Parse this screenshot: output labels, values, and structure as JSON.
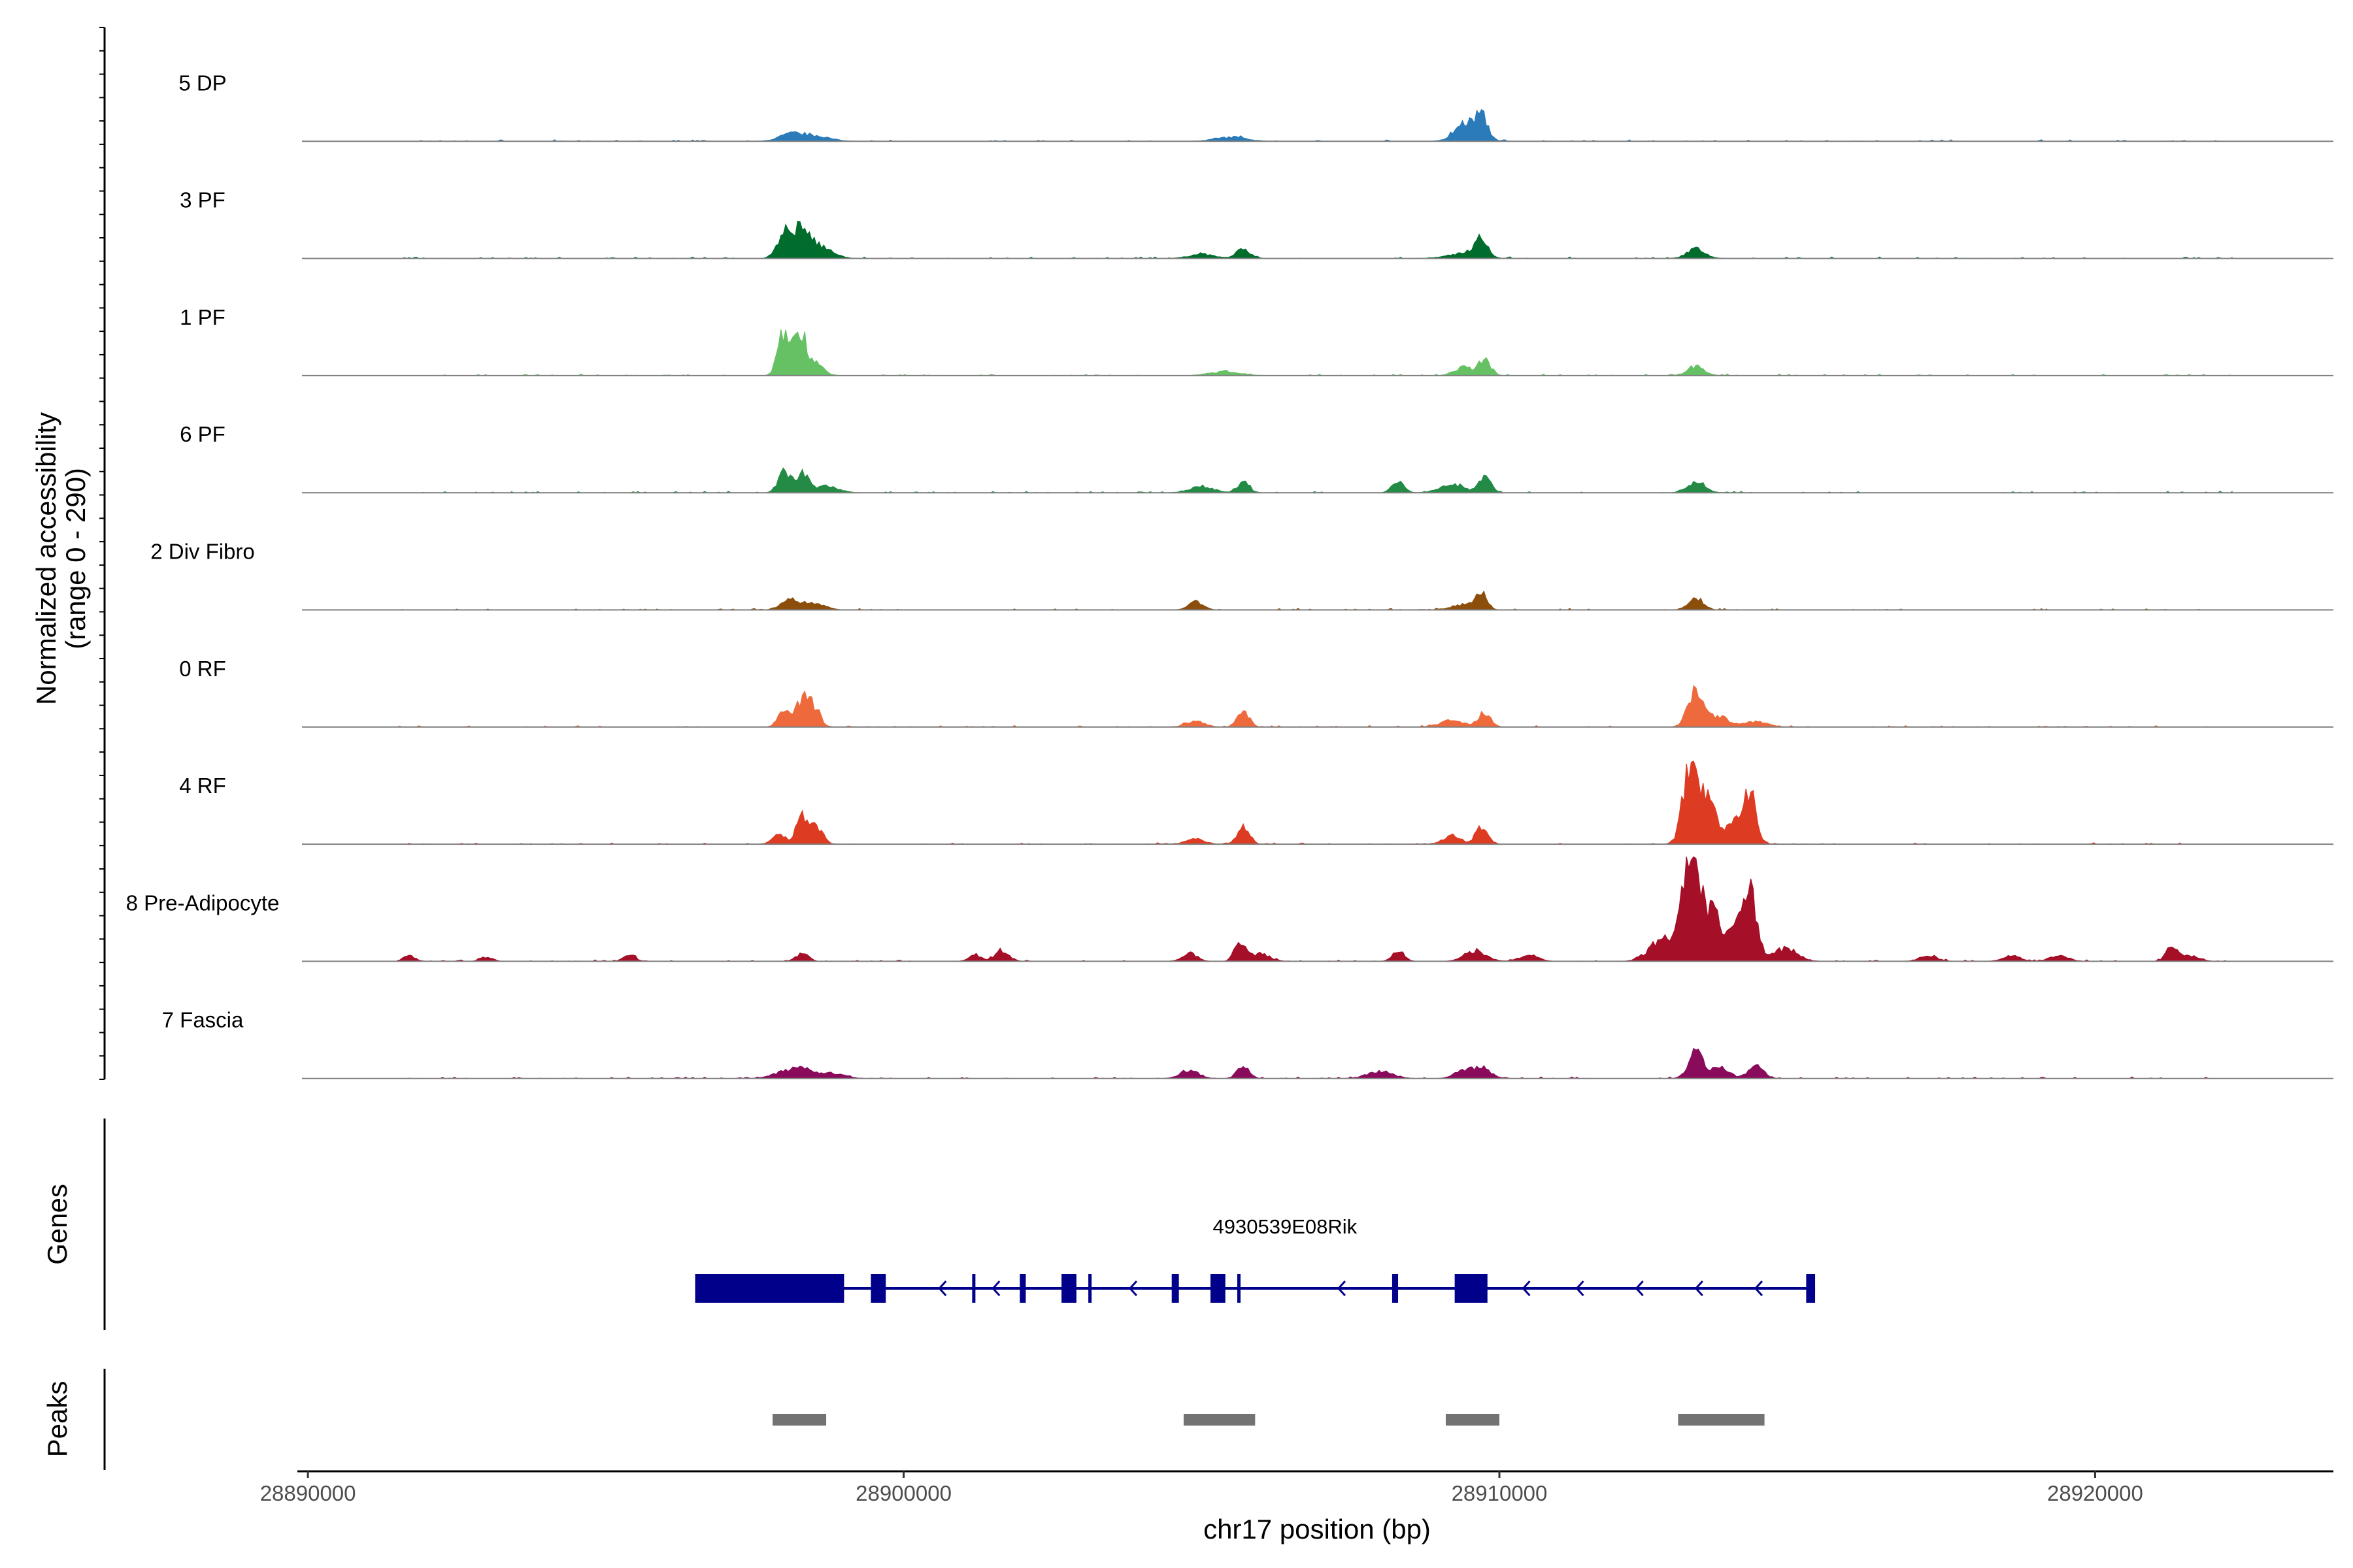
{
  "chart_data": {
    "type": "area",
    "ylabel": "Normalized accessibility",
    "ylabel_range": "(range 0 - 290)",
    "ylim": [
      0,
      290
    ],
    "xlabel": "chr17 position (bp)",
    "xlim": [
      28889900,
      28924000
    ],
    "xticks": [
      28890000,
      28900000,
      28910000,
      28920000
    ],
    "xtick_labels": [
      "28890000",
      "28900000",
      "28910000",
      "28920000"
    ],
    "track_panel_label": "Genes",
    "peak_panel_label": "Peaks",
    "baseline_color": "#7f7f7f",
    "tracks": [
      {
        "name": "5 DP",
        "color": "#2b7bba",
        "peaks": [
          [
            28898100,
            0.06,
            200
          ],
          [
            28898500,
            0.05,
            250
          ],
          [
            28905500,
            0.04,
            250
          ],
          [
            28909400,
            0.1,
            150
          ],
          [
            28909700,
            0.2,
            100
          ],
          [
            28909500,
            0.08,
            220
          ]
        ]
      },
      {
        "name": "3 PF",
        "color": "#006d2c",
        "peaks": [
          [
            28898000,
            0.25,
            120
          ],
          [
            28898300,
            0.28,
            120
          ],
          [
            28898600,
            0.12,
            200
          ],
          [
            28905000,
            0.04,
            200
          ],
          [
            28905700,
            0.08,
            120
          ],
          [
            28909400,
            0.05,
            250
          ],
          [
            28909700,
            0.17,
            100
          ],
          [
            28913300,
            0.09,
            150
          ]
        ]
      },
      {
        "name": "1 PF",
        "color": "#66c164",
        "peaks": [
          [
            28897970,
            0.38,
            90
          ],
          [
            28898250,
            0.42,
            100
          ],
          [
            28898500,
            0.12,
            140
          ],
          [
            28905400,
            0.04,
            250
          ],
          [
            28909400,
            0.08,
            150
          ],
          [
            28909750,
            0.15,
            100
          ],
          [
            28913300,
            0.09,
            140
          ]
        ]
      },
      {
        "name": "6 PF",
        "color": "#238b45",
        "peaks": [
          [
            28898000,
            0.2,
            100
          ],
          [
            28898300,
            0.18,
            100
          ],
          [
            28898700,
            0.06,
            200
          ],
          [
            28905000,
            0.06,
            200
          ],
          [
            28905700,
            0.1,
            100
          ],
          [
            28908300,
            0.1,
            100
          ],
          [
            28909200,
            0.08,
            200
          ],
          [
            28909750,
            0.15,
            100
          ],
          [
            28913300,
            0.1,
            150
          ]
        ]
      },
      {
        "name": "2 Div Fibro",
        "color": "#8c4f0b",
        "peaks": [
          [
            28898100,
            0.1,
            150
          ],
          [
            28898500,
            0.06,
            180
          ],
          [
            28904900,
            0.08,
            120
          ],
          [
            28909700,
            0.16,
            90
          ],
          [
            28909400,
            0.05,
            200
          ],
          [
            28913300,
            0.12,
            120
          ]
        ]
      },
      {
        "name": "0 RF",
        "color": "#ee6a3c",
        "peaks": [
          [
            28898000,
            0.18,
            100
          ],
          [
            28898300,
            0.25,
            100
          ],
          [
            28898500,
            0.18,
            100
          ],
          [
            28904900,
            0.06,
            150
          ],
          [
            28905700,
            0.14,
            100
          ],
          [
            28909200,
            0.06,
            200
          ],
          [
            28909750,
            0.14,
            100
          ],
          [
            28913300,
            0.34,
            130
          ],
          [
            28913700,
            0.1,
            150
          ],
          [
            28914300,
            0.05,
            200
          ]
        ]
      },
      {
        "name": "4 RF",
        "color": "#de3b23",
        "peaks": [
          [
            28897900,
            0.1,
            100
          ],
          [
            28898300,
            0.28,
            100
          ],
          [
            28898550,
            0.15,
            100
          ],
          [
            28904900,
            0.05,
            150
          ],
          [
            28905700,
            0.16,
            100
          ],
          [
            28909200,
            0.08,
            150
          ],
          [
            28909700,
            0.16,
            100
          ],
          [
            28913200,
            0.72,
            120
          ],
          [
            28913500,
            0.4,
            160
          ],
          [
            28914200,
            0.42,
            110
          ],
          [
            28914000,
            0.2,
            150
          ]
        ]
      },
      {
        "name": "8 Pre-Adipocyte",
        "color": "#a50f28",
        "peaks": [
          [
            28891700,
            0.05,
            100
          ],
          [
            28893000,
            0.04,
            100
          ],
          [
            28895400,
            0.06,
            100
          ],
          [
            28898300,
            0.08,
            100
          ],
          [
            28901200,
            0.06,
            100
          ],
          [
            28901650,
            0.1,
            120
          ],
          [
            28904800,
            0.08,
            120
          ],
          [
            28905650,
            0.2,
            90
          ],
          [
            28906000,
            0.07,
            150
          ],
          [
            28908300,
            0.1,
            100
          ],
          [
            28909600,
            0.1,
            180
          ],
          [
            28910500,
            0.06,
            150
          ],
          [
            28912600,
            0.1,
            180
          ],
          [
            28913200,
            0.95,
            110
          ],
          [
            28913500,
            0.5,
            180
          ],
          [
            28912900,
            0.2,
            200
          ],
          [
            28914200,
            0.62,
            110
          ],
          [
            28914000,
            0.3,
            200
          ],
          [
            28914800,
            0.12,
            200
          ],
          [
            28917200,
            0.05,
            150
          ],
          [
            28918600,
            0.05,
            150
          ],
          [
            28919400,
            0.06,
            150
          ],
          [
            28921300,
            0.14,
            100
          ],
          [
            28921600,
            0.05,
            150
          ]
        ]
      },
      {
        "name": "7 Fascia",
        "color": "#8a0b5c",
        "peaks": [
          [
            28898000,
            0.06,
            200
          ],
          [
            28898300,
            0.1,
            150
          ],
          [
            28898800,
            0.05,
            200
          ],
          [
            28904800,
            0.08,
            150
          ],
          [
            28905700,
            0.11,
            100
          ],
          [
            28908000,
            0.07,
            200
          ],
          [
            28909400,
            0.07,
            150
          ],
          [
            28909700,
            0.1,
            150
          ],
          [
            28913300,
            0.28,
            120
          ],
          [
            28913700,
            0.1,
            150
          ],
          [
            28914300,
            0.12,
            130
          ]
        ]
      }
    ],
    "gene": {
      "name": "4930539E08Rik",
      "color": "#00008b",
      "start": 28896500,
      "end": 28915300,
      "strand": "-",
      "exons": [
        [
          28896500,
          28899000
        ],
        [
          28899450,
          28899700
        ],
        [
          28901150,
          28901200
        ],
        [
          28901950,
          28902050
        ],
        [
          28902650,
          28902900
        ],
        [
          28903100,
          28903150
        ],
        [
          28904500,
          28904620
        ],
        [
          28905150,
          28905400
        ],
        [
          28905600,
          28905650
        ],
        [
          28908200,
          28908300
        ],
        [
          28909250,
          28909800
        ],
        [
          28915150,
          28915300
        ]
      ],
      "utr_exons": [],
      "arrows": [
        28900600,
        28901500,
        28903800,
        28907300,
        28910400,
        28911300,
        28912300,
        28913300,
        28914300
      ]
    },
    "peaks": [
      [
        28897800,
        28898700
      ],
      [
        28904700,
        28905900
      ],
      [
        28909100,
        28910000
      ],
      [
        28913000,
        28914450
      ]
    ],
    "peak_color": "#737373"
  }
}
